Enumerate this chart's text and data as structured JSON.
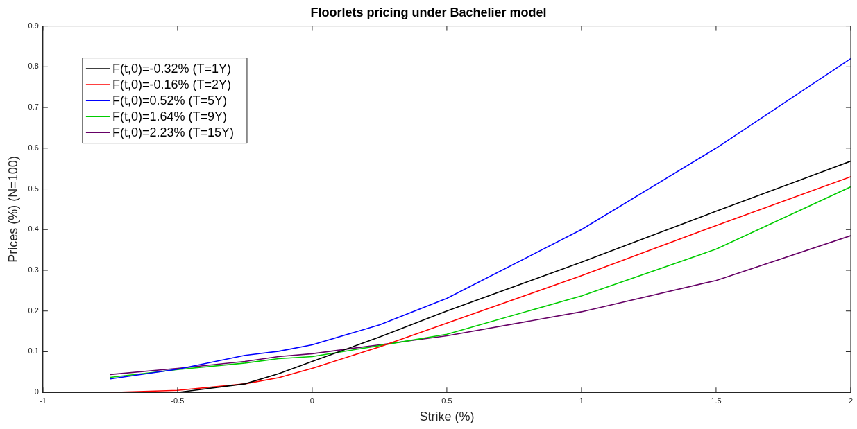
{
  "chart_data": {
    "type": "line",
    "title": "Floorlets pricing under Bachelier model",
    "xlabel": "Strike (%)",
    "ylabel": "Prices (%) (N=100)",
    "x": [
      -0.75,
      -0.5,
      -0.25,
      -0.125,
      0,
      0.25,
      0.5,
      1,
      1.5,
      2
    ],
    "series": [
      {
        "name": "F(t,0)=-0.32% (T=1Y)",
        "color": "#000000",
        "values": [
          0,
          0,
          0.021,
          0.046,
          0.076,
          0.136,
          0.2,
          0.32,
          0.445,
          0.568
        ]
      },
      {
        "name": "F(t,0)=-0.16% (T=2Y)",
        "color": "#ff0000",
        "values": [
          0,
          0.005,
          0.021,
          0.036,
          0.059,
          0.112,
          0.17,
          0.287,
          0.41,
          0.53
        ]
      },
      {
        "name": "F(t,0)=0.52% (T=5Y)",
        "color": "#0000ff",
        "values": [
          0.033,
          0.057,
          0.091,
          0.101,
          0.117,
          0.166,
          0.231,
          0.4,
          0.6,
          0.82
        ]
      },
      {
        "name": "F(t,0)=1.64% (T=9Y)",
        "color": "#00cc00",
        "values": [
          0.037,
          0.056,
          0.072,
          0.083,
          0.088,
          0.115,
          0.143,
          0.237,
          0.352,
          0.505
        ]
      },
      {
        "name": "F(t,0)=2.23% (T=15Y)",
        "color": "#660066",
        "values": [
          0.044,
          0.059,
          0.076,
          0.088,
          0.095,
          0.117,
          0.139,
          0.198,
          0.275,
          0.385
        ]
      }
    ],
    "xlim": [
      -1,
      2
    ],
    "xticks": [
      -1,
      -0.5,
      0,
      0.5,
      1,
      1.5,
      2
    ],
    "ylim": [
      0,
      0.9
    ],
    "yticks": [
      0,
      0.1,
      0.2,
      0.3,
      0.4,
      0.5,
      0.6,
      0.7,
      0.8,
      0.9
    ],
    "grid": false,
    "legend": "top left",
    "marker": "none",
    "line_style": "solid"
  }
}
